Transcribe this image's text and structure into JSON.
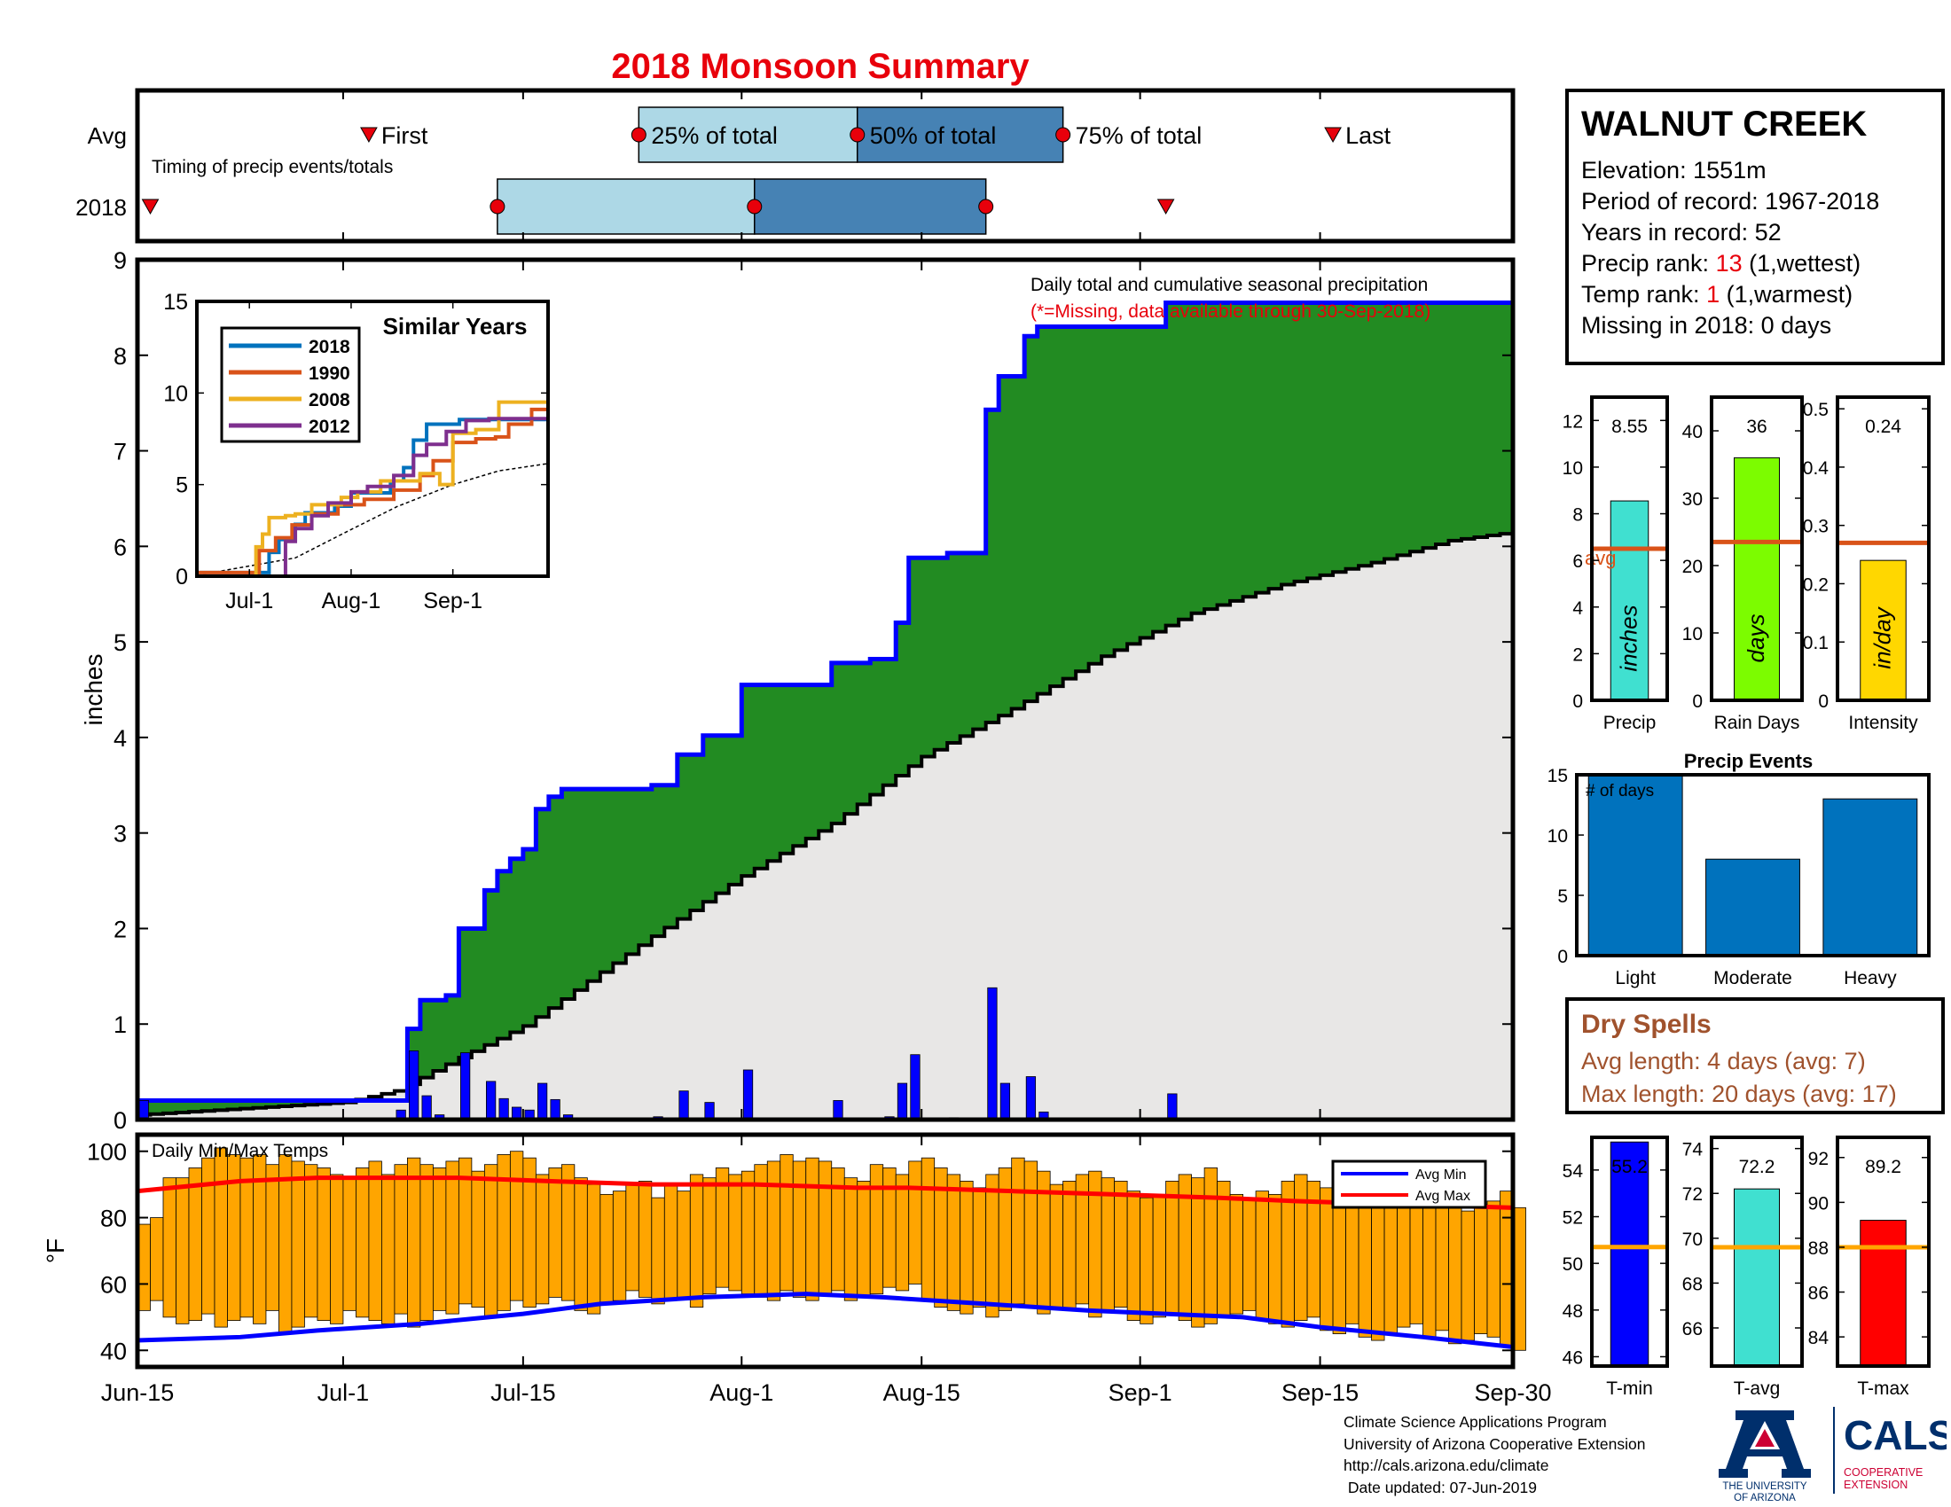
{
  "page_title": "2018 Monsoon Summary",
  "station": {
    "name": "WALNUT CREEK",
    "elevation_label": "Elevation: 1551m",
    "period_label": "Period of record: 1967-2018",
    "years_label": "Years in record: 52",
    "precip_rank_prefix": "Precip rank: ",
    "precip_rank": "13",
    "precip_rank_suffix": " (1,wettest)",
    "temp_rank_prefix": "Temp rank: ",
    "temp_rank": "1",
    "temp_rank_suffix": " (1,warmest)",
    "missing_label": "Missing in 2018: 0 days"
  },
  "dry_spells": {
    "title": "Dry Spells",
    "avg_label": "Avg length: 4 days (avg: 7)",
    "max_label": "Max length: 20 days (avg: 17)"
  },
  "footer": {
    "line1": "Climate Science Applications Program",
    "line2": "University of Arizona Cooperative Extension",
    "line3": "http://cals.arizona.edu/climate",
    "line4": " Date updated: 07-Jun-2019"
  },
  "logos": {
    "ua_line1": "THE UNIVERSITY",
    "ua_line2": "OF ARIZONA",
    "cals_title": "CALS",
    "cals_line1": "COOPERATIVE",
    "cals_line2": "EXTENSION"
  },
  "colors": {
    "light_blue": "#add8e6",
    "steel_blue": "#4682b4",
    "green_fill": "#228b22",
    "gray_fill": "#e8e7e6",
    "daily_bar": "#0000ff",
    "temp_bar": "#ffa500",
    "avg_min_line": "#0000ff",
    "avg_max_line": "#ff0000",
    "avg_line_orange": "#d95319",
    "avg_line_gold": "#ffa500",
    "similar_2018": "#0072bd",
    "similar_1990": "#d95319",
    "similar_2008": "#edb120",
    "similar_2012": "#7e2f8e",
    "event_bar": "#0072bd",
    "precip_bar": "#40e0d0",
    "raindays_bar": "#7cfc00",
    "intensity_bar": "#ffd700",
    "tmin_bar": "#0000ff",
    "tavg_bar": "#40e0d0",
    "tmax_bar": "#ff0000",
    "dry_text": "#a0522d"
  },
  "date_axis": [
    "Jun-15",
    "Jul-1",
    "Jul-15",
    "Aug-1",
    "Aug-15",
    "Sep-1",
    "Sep-15",
    "Sep-30"
  ],
  "chart_data": [
    {
      "type": "timing",
      "row_labels": [
        "Avg",
        "2018"
      ],
      "note": "Timing of precip events/totals",
      "avg": {
        "first": "2018-07-03",
        "p25": "2018-07-24",
        "p50": "2018-08-10",
        "p75": "2018-08-26",
        "last": "2018-09-16"
      },
      "y2018": {
        "first": "2018-06-16",
        "p25": "2018-07-13",
        "p50": "2018-08-02",
        "p75": "2018-08-20",
        "last": "2018-09-03"
      },
      "avg_annotations": {
        "first": "First",
        "p25": "25% of total",
        "p50": "50% of total",
        "p75": "75% of total",
        "last": "Last"
      }
    },
    {
      "type": "area",
      "title": "Daily total and cumulative seasonal precipitation",
      "subtitle": "(*=Missing, data available through 30-Sep-2018)",
      "xlabel": "",
      "ylabel": "inches",
      "xlim": [
        "2018-06-15",
        "2018-09-30"
      ],
      "ylim": [
        0,
        9
      ],
      "yticks": [
        0,
        1,
        2,
        3,
        4,
        5,
        6,
        7,
        8,
        9
      ],
      "cumulative_2018": [
        [
          "2018-06-15",
          0.2
        ],
        [
          "2018-07-01",
          0.2
        ],
        [
          "2018-07-05",
          0.2
        ],
        [
          "2018-07-06",
          0.95
        ],
        [
          "2018-07-07",
          1.25
        ],
        [
          "2018-07-09",
          1.3
        ],
        [
          "2018-07-10",
          2.0
        ],
        [
          "2018-07-12",
          2.4
        ],
        [
          "2018-07-13",
          2.6
        ],
        [
          "2018-07-14",
          2.73
        ],
        [
          "2018-07-15",
          2.83
        ],
        [
          "2018-07-16",
          3.25
        ],
        [
          "2018-07-17",
          3.38
        ],
        [
          "2018-07-18",
          3.46
        ],
        [
          "2018-07-25",
          3.5
        ],
        [
          "2018-07-27",
          3.82
        ],
        [
          "2018-07-29",
          4.02
        ],
        [
          "2018-08-01",
          4.55
        ],
        [
          "2018-08-07",
          4.55
        ],
        [
          "2018-08-08",
          4.78
        ],
        [
          "2018-08-11",
          4.82
        ],
        [
          "2018-08-13",
          5.2
        ],
        [
          "2018-08-14",
          5.88
        ],
        [
          "2018-08-17",
          5.93
        ],
        [
          "2018-08-20",
          7.43
        ],
        [
          "2018-08-21",
          7.78
        ],
        [
          "2018-08-23",
          8.2
        ],
        [
          "2018-08-24",
          8.3
        ],
        [
          "2018-09-03",
          8.55
        ],
        [
          "2018-09-30",
          8.55
        ]
      ],
      "avg_cumulative": [
        [
          "2018-06-15",
          0.05
        ],
        [
          "2018-07-01",
          0.18
        ],
        [
          "2018-07-05",
          0.3
        ],
        [
          "2018-07-10",
          0.65
        ],
        [
          "2018-07-15",
          0.98
        ],
        [
          "2018-07-20",
          1.45
        ],
        [
          "2018-07-25",
          1.92
        ],
        [
          "2018-08-01",
          2.55
        ],
        [
          "2018-08-08",
          3.1
        ],
        [
          "2018-08-15",
          3.8
        ],
        [
          "2018-08-22",
          4.3
        ],
        [
          "2018-08-29",
          4.85
        ],
        [
          "2018-09-05",
          5.3
        ],
        [
          "2018-09-12",
          5.6
        ],
        [
          "2018-09-19",
          5.83
        ],
        [
          "2018-09-25",
          6.06
        ],
        [
          "2018-09-30",
          6.15
        ]
      ],
      "daily_2018": [
        [
          "2018-06-15",
          0.2
        ],
        [
          "2018-07-05",
          0.1
        ],
        [
          "2018-07-06",
          0.72
        ],
        [
          "2018-07-07",
          0.25
        ],
        [
          "2018-07-08",
          0.05
        ],
        [
          "2018-07-10",
          0.7
        ],
        [
          "2018-07-12",
          0.4
        ],
        [
          "2018-07-13",
          0.22
        ],
        [
          "2018-07-14",
          0.13
        ],
        [
          "2018-07-15",
          0.1
        ],
        [
          "2018-07-16",
          0.38
        ],
        [
          "2018-07-17",
          0.21
        ],
        [
          "2018-07-18",
          0.05
        ],
        [
          "2018-07-25",
          0.03
        ],
        [
          "2018-07-27",
          0.3
        ],
        [
          "2018-07-29",
          0.18
        ],
        [
          "2018-08-01",
          0.52
        ],
        [
          "2018-08-08",
          0.2
        ],
        [
          "2018-08-12",
          0.03
        ],
        [
          "2018-08-13",
          0.38
        ],
        [
          "2018-08-14",
          0.68
        ],
        [
          "2018-08-17",
          0.02
        ],
        [
          "2018-08-20",
          1.38
        ],
        [
          "2018-08-21",
          0.38
        ],
        [
          "2018-08-23",
          0.45
        ],
        [
          "2018-08-24",
          0.08
        ],
        [
          "2018-09-03",
          0.27
        ]
      ]
    },
    {
      "type": "line",
      "title": "Similar Years",
      "xlim": [
        "2018-06-15",
        "2018-09-30"
      ],
      "ylim": [
        0,
        15
      ],
      "yticks": [
        0,
        5,
        10,
        15
      ],
      "xticks": [
        "Jul-1",
        "Aug-1",
        "Sep-1"
      ],
      "series": [
        {
          "name": "2018",
          "points": [
            [
              "2018-06-15",
              0.2
            ],
            [
              "2018-07-05",
              0.2
            ],
            [
              "2018-07-07",
              1.3
            ],
            [
              "2018-07-10",
              2.0
            ],
            [
              "2018-07-15",
              2.83
            ],
            [
              "2018-07-18",
              3.46
            ],
            [
              "2018-07-27",
              3.82
            ],
            [
              "2018-08-01",
              4.55
            ],
            [
              "2018-08-13",
              5.2
            ],
            [
              "2018-08-17",
              5.93
            ],
            [
              "2018-08-20",
              7.43
            ],
            [
              "2018-08-24",
              8.3
            ],
            [
              "2018-09-03",
              8.55
            ],
            [
              "2018-09-30",
              8.55
            ]
          ]
        },
        {
          "name": "1990",
          "points": [
            [
              "2018-06-15",
              0.2
            ],
            [
              "2018-07-03",
              0.2
            ],
            [
              "2018-07-04",
              1.4
            ],
            [
              "2018-07-09",
              2.1
            ],
            [
              "2018-07-14",
              2.8
            ],
            [
              "2018-07-20",
              3.4
            ],
            [
              "2018-07-28",
              3.9
            ],
            [
              "2018-08-05",
              4.2
            ],
            [
              "2018-08-14",
              4.7
            ],
            [
              "2018-08-22",
              5.5
            ],
            [
              "2018-08-26",
              6.3
            ],
            [
              "2018-09-01",
              7.3
            ],
            [
              "2018-09-08",
              7.5
            ],
            [
              "2018-09-14",
              7.6
            ],
            [
              "2018-09-18",
              8.3
            ],
            [
              "2018-09-25",
              9.1
            ],
            [
              "2018-09-30",
              9.1
            ]
          ]
        },
        {
          "name": "2008",
          "points": [
            [
              "2018-06-15",
              0.0
            ],
            [
              "2018-07-02",
              0.0
            ],
            [
              "2018-07-03",
              1.6
            ],
            [
              "2018-07-05",
              2.3
            ],
            [
              "2018-07-07",
              3.2
            ],
            [
              "2018-07-12",
              3.3
            ],
            [
              "2018-07-15",
              3.4
            ],
            [
              "2018-07-20",
              3.9
            ],
            [
              "2018-07-29",
              4.3
            ],
            [
              "2018-08-03",
              4.6
            ],
            [
              "2018-08-10",
              5.2
            ],
            [
              "2018-08-22",
              5.6
            ],
            [
              "2018-08-28",
              5.0
            ],
            [
              "2018-09-01",
              7.8
            ],
            [
              "2018-09-08",
              8.0
            ],
            [
              "2018-09-15",
              9.5
            ],
            [
              "2018-09-30",
              9.8
            ]
          ]
        },
        {
          "name": "2012",
          "points": [
            [
              "2018-06-15",
              0.0
            ],
            [
              "2018-07-10",
              0.0
            ],
            [
              "2018-07-12",
              1.9
            ],
            [
              "2018-07-15",
              2.6
            ],
            [
              "2018-07-20",
              3.3
            ],
            [
              "2018-07-25",
              4.0
            ],
            [
              "2018-08-01",
              4.6
            ],
            [
              "2018-08-06",
              4.9
            ],
            [
              "2018-08-14",
              5.5
            ],
            [
              "2018-08-20",
              6.6
            ],
            [
              "2018-08-24",
              7.2
            ],
            [
              "2018-08-30",
              7.9
            ],
            [
              "2018-09-05",
              8.5
            ],
            [
              "2018-09-12",
              8.6
            ],
            [
              "2018-09-30",
              8.6
            ]
          ]
        }
      ],
      "average_dashed": [
        [
          "2018-06-15",
          0.05
        ],
        [
          "2018-07-15",
          1.0
        ],
        [
          "2018-08-01",
          2.55
        ],
        [
          "2018-08-15",
          3.8
        ],
        [
          "2018-09-01",
          5.0
        ],
        [
          "2018-09-15",
          5.75
        ],
        [
          "2018-09-30",
          6.15
        ]
      ]
    },
    {
      "type": "bar",
      "title": "Daily Min/Max Temps",
      "ylabel": "°F",
      "ylim": [
        35,
        105
      ],
      "yticks": [
        40,
        60,
        80,
        100
      ],
      "start_date": "2018-06-15",
      "tmax": [
        78,
        80,
        92,
        92,
        95,
        98,
        101,
        99,
        98,
        99,
        96,
        99,
        97,
        96,
        95,
        93,
        92,
        95,
        97,
        93,
        96,
        98,
        96,
        95,
        97,
        98,
        94,
        96,
        99,
        100,
        98,
        93,
        95,
        96,
        92,
        90,
        87,
        88,
        90,
        91,
        86,
        90,
        88,
        93,
        92,
        95,
        93,
        94,
        96,
        97,
        99,
        97,
        98,
        97,
        95,
        92,
        91,
        96,
        95,
        93,
        97,
        98,
        95,
        93,
        91,
        89,
        93,
        95,
        98,
        97,
        94,
        90,
        91,
        93,
        94,
        92,
        91,
        88,
        86,
        87,
        91,
        93,
        92,
        95,
        91,
        87,
        86,
        88,
        87,
        91,
        93,
        91,
        89,
        84,
        88,
        86,
        90,
        92,
        87,
        86,
        85,
        86,
        83,
        82,
        84,
        85,
        88,
        83
      ],
      "tmin": [
        52,
        55,
        50,
        48,
        49,
        51,
        47,
        49,
        50,
        48,
        52,
        45,
        47,
        50,
        49,
        48,
        52,
        50,
        49,
        48,
        51,
        47,
        49,
        52,
        51,
        54,
        53,
        50,
        52,
        55,
        53,
        54,
        56,
        55,
        52,
        51,
        54,
        55,
        58,
        56,
        54,
        55,
        56,
        53,
        57,
        59,
        58,
        57,
        56,
        55,
        58,
        56,
        55,
        57,
        58,
        55,
        56,
        57,
        59,
        58,
        60,
        55,
        53,
        52,
        51,
        53,
        50,
        52,
        54,
        53,
        51,
        53,
        52,
        54,
        50,
        52,
        53,
        49,
        48,
        50,
        51,
        49,
        47,
        48,
        50,
        51,
        52,
        49,
        48,
        47,
        49,
        50,
        46,
        45,
        48,
        44,
        43,
        45,
        47,
        48,
        44,
        46,
        42,
        43,
        45,
        44,
        41,
        40
      ],
      "avg_max": [
        [
          0,
          88
        ],
        [
          8,
          91
        ],
        [
          14,
          92
        ],
        [
          25,
          92
        ],
        [
          32,
          91
        ],
        [
          40,
          90
        ],
        [
          48,
          90
        ],
        [
          56,
          89
        ],
        [
          60,
          89
        ],
        [
          68,
          88
        ],
        [
          76,
          87
        ],
        [
          84,
          86
        ],
        [
          90,
          85
        ],
        [
          98,
          84
        ],
        [
          107,
          83
        ]
      ],
      "avg_min": [
        [
          0,
          43
        ],
        [
          8,
          44
        ],
        [
          14,
          46
        ],
        [
          22,
          48
        ],
        [
          30,
          51
        ],
        [
          36,
          54
        ],
        [
          44,
          56
        ],
        [
          52,
          57
        ],
        [
          58,
          56
        ],
        [
          66,
          54
        ],
        [
          74,
          52
        ],
        [
          80,
          51
        ],
        [
          86,
          50
        ],
        [
          92,
          47
        ],
        [
          100,
          44
        ],
        [
          107,
          41
        ]
      ],
      "legend": [
        "Avg Min",
        "Avg Max"
      ]
    },
    {
      "type": "bar",
      "categories": [
        "Precip",
        "Rain Days",
        "Intensity"
      ],
      "values": [
        8.55,
        36,
        0.24
      ],
      "value_labels": [
        "8.55",
        "36",
        "0.24"
      ],
      "avg_values": [
        6.5,
        23.5,
        0.27
      ],
      "avg_label": "avg",
      "units": [
        "inches",
        "days",
        "in/day"
      ],
      "ylims": [
        [
          0,
          13
        ],
        [
          0,
          45
        ],
        [
          0,
          0.52
        ]
      ],
      "yticks": [
        [
          0,
          2,
          4,
          6,
          8,
          10,
          12
        ],
        [
          0,
          10,
          20,
          30,
          40
        ],
        [
          0,
          0.1,
          0.2,
          0.3,
          0.4,
          0.5
        ]
      ]
    },
    {
      "type": "bar",
      "title": "Precip Events",
      "annotation": "# of days",
      "categories": [
        "Light",
        "Moderate",
        "Heavy"
      ],
      "values": [
        15,
        8,
        13
      ],
      "ylim": [
        0,
        15
      ],
      "yticks": [
        0,
        5,
        10,
        15
      ]
    },
    {
      "type": "bar",
      "categories": [
        "T-min",
        "T-avg",
        "T-max"
      ],
      "values": [
        55.2,
        72.2,
        89.2
      ],
      "value_labels": [
        "55.2",
        "72.2",
        "89.2"
      ],
      "avg_values": [
        50.7,
        69.6,
        88.0
      ],
      "ylims": [
        [
          45.6,
          55.4
        ],
        [
          64.3,
          74.5
        ],
        [
          82.7,
          92.9
        ]
      ],
      "yticks": [
        [
          46,
          48,
          50,
          52,
          54
        ],
        [
          66,
          68,
          70,
          72,
          74
        ],
        [
          84,
          86,
          88,
          90,
          92
        ]
      ]
    }
  ]
}
